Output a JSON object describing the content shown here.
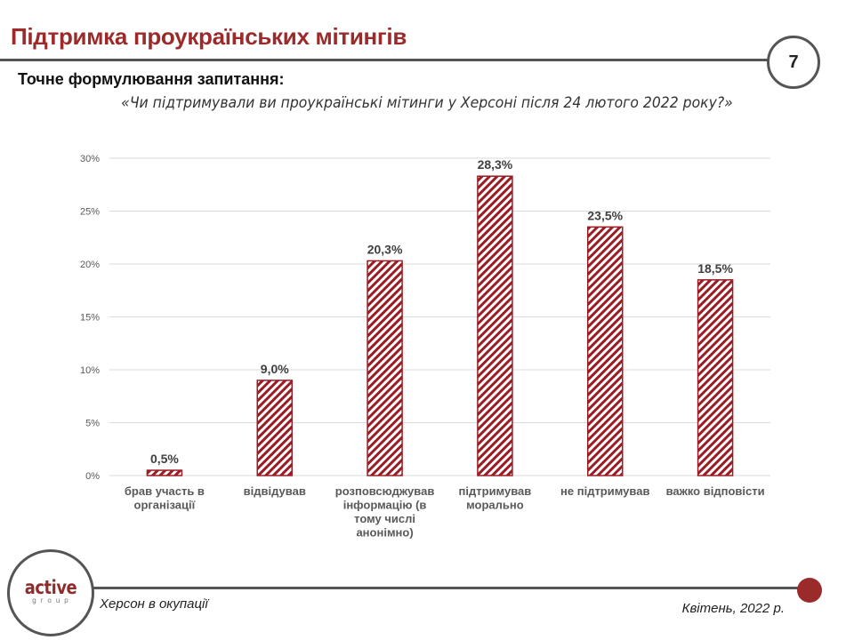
{
  "header": {
    "title": "Підтримка проукраїнських мітингів",
    "page_number": "7",
    "subtitle": "Точне формулювання запитання:",
    "question": "«Чи підтримували ви проукраїнські мітинги у Херсоні після 24 лютого 2022 року?»"
  },
  "footer": {
    "logo_main": "active",
    "logo_sub": "group",
    "left_text": "Херсон в окупації",
    "right_text": "Квітень, 2022 р."
  },
  "colors": {
    "accent": "#9b2b2b",
    "bar_stroke": "#9b1c24",
    "grid": "#d9d9d9",
    "axis_text": "#595959",
    "label_text": "#404040"
  },
  "chart_data": {
    "type": "bar",
    "title": "",
    "xlabel": "",
    "ylabel": "",
    "ylim": [
      0,
      30
    ],
    "yticks": [
      0,
      5,
      10,
      15,
      20,
      25,
      30
    ],
    "ytick_labels": [
      "0%",
      "5%",
      "10%",
      "15%",
      "20%",
      "25%",
      "30%"
    ],
    "grid": true,
    "legend": "none",
    "fill_pattern": "diagonal-hatch",
    "categories": [
      [
        "брав участь в",
        "організації"
      ],
      [
        "відвідував"
      ],
      [
        "розповсюджував",
        "інформацію (в",
        "тому числі",
        "анонімно)"
      ],
      [
        "підтримував",
        "морально"
      ],
      [
        "не підтримував"
      ],
      [
        "важко відповісти"
      ]
    ],
    "values": [
      0.5,
      9.0,
      20.3,
      28.3,
      23.5,
      18.5
    ],
    "value_labels": [
      "0,5%",
      "9,0%",
      "20,3%",
      "28,3%",
      "23,5%",
      "18,5%"
    ]
  }
}
